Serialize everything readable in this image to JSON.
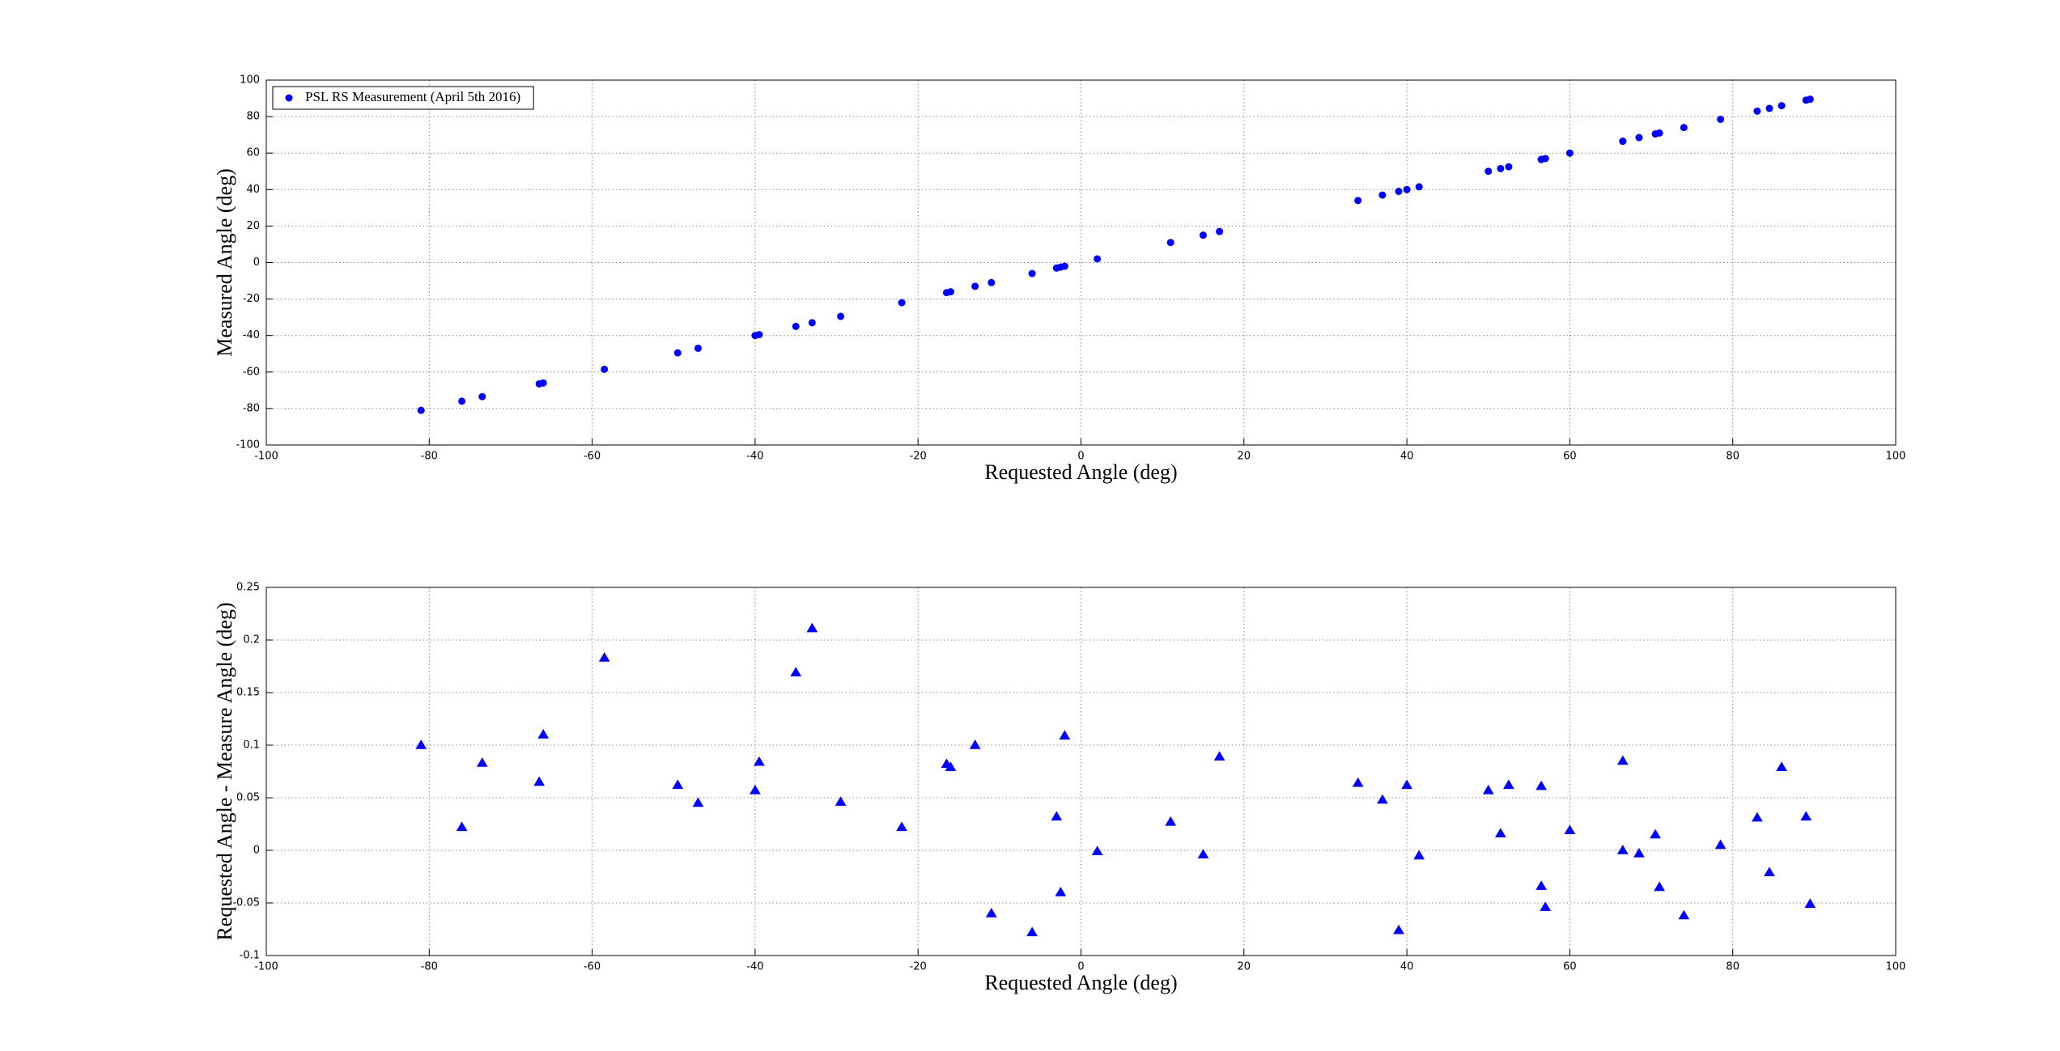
{
  "chart_data": [
    {
      "type": "scatter",
      "marker": "circle",
      "color": "#0000ff",
      "grid": true,
      "legend": "upper left",
      "xlabel": "Requested Angle (deg)",
      "ylabel": "Measured Angle (deg)",
      "xlim": [
        -100,
        100
      ],
      "ylim": [
        -100,
        100
      ],
      "xticks": [
        -100,
        -80,
        -60,
        -40,
        -20,
        0,
        20,
        40,
        60,
        80,
        100
      ],
      "yticks": [
        -100,
        -80,
        -60,
        -40,
        -20,
        0,
        20,
        40,
        60,
        80,
        100
      ],
      "series": [
        {
          "name": "PSL RS Measurement (April 5th 2016)",
          "color": "#0000ff",
          "x": [
            -81,
            -76,
            -73.5,
            -66.5,
            -66,
            -58.5,
            -49.5,
            -47,
            -40,
            -39.5,
            -35,
            -33,
            -29.5,
            -22,
            -16.5,
            -16,
            -13,
            -11,
            -6,
            -3,
            -2.5,
            -2,
            2,
            11,
            15,
            17,
            34,
            37,
            39,
            40,
            41.5,
            50,
            51.5,
            52.5,
            56.5,
            56.5,
            57,
            60,
            66.5,
            66.5,
            68.5,
            70.5,
            71,
            74,
            78.5,
            83,
            84.5,
            86,
            89,
            89.5
          ],
          "values": [
            -81,
            -76,
            -73.5,
            -66.5,
            -66,
            -58.5,
            -49.5,
            -47,
            -40,
            -39.5,
            -35,
            -33,
            -29.5,
            -22,
            -16.5,
            -16,
            -13,
            -11,
            -6,
            -3,
            -2.5,
            -2,
            2,
            11,
            15,
            17,
            34,
            37,
            39,
            40,
            41.5,
            50,
            51.5,
            52.5,
            56.5,
            56.5,
            57,
            60,
            66.5,
            66.5,
            68.5,
            70.5,
            71,
            74,
            78.5,
            83,
            84.5,
            86,
            89,
            89.5
          ]
        }
      ]
    },
    {
      "type": "scatter",
      "marker": "triangle",
      "color": "#0000ff",
      "grid": true,
      "xlabel": "Requested Angle (deg)",
      "ylabel": "Requested Angle - Measure Angle (deg)",
      "xlim": [
        -100,
        100
      ],
      "ylim": [
        -0.1,
        0.25
      ],
      "xticks": [
        -100,
        -80,
        -60,
        -40,
        -20,
        0,
        20,
        40,
        60,
        80,
        100
      ],
      "yticks": [
        -0.1,
        -0.05,
        0,
        0.05,
        0.1,
        0.15,
        0.2,
        0.25
      ],
      "series": [
        {
          "color": "#0000ff",
          "x": [
            -81,
            -76,
            -73.5,
            -66.5,
            -66,
            -58.5,
            -49.5,
            -47,
            -40,
            -39.5,
            -35,
            -33,
            -29.5,
            -22,
            -16.5,
            -16,
            -13,
            -11,
            -6,
            -3,
            -2.5,
            -2,
            2,
            11,
            15,
            17,
            34,
            37,
            39,
            40,
            41.5,
            50,
            51.5,
            52.5,
            56.5,
            56.5,
            57,
            60,
            66.5,
            66.5,
            68.5,
            70.5,
            71,
            74,
            78.5,
            83,
            84.5,
            86,
            89,
            89.5
          ],
          "values": [
            0.1,
            0.022,
            0.083,
            0.065,
            0.11,
            0.183,
            0.062,
            0.045,
            0.057,
            0.084,
            0.169,
            0.211,
            0.046,
            0.022,
            0.082,
            0.079,
            0.1,
            -0.06,
            -0.078,
            0.032,
            -0.04,
            0.109,
            -0.001,
            0.027,
            -0.004,
            0.089,
            0.064,
            0.048,
            -0.076,
            0.062,
            -0.005,
            0.057,
            0.016,
            0.062,
            0.061,
            -0.034,
            -0.054,
            0.019,
            0.085,
            0,
            -0.003,
            0.015,
            -0.035,
            -0.062,
            0.005,
            0.031,
            -0.021,
            0.079,
            0.032,
            -0.051
          ]
        }
      ]
    }
  ]
}
